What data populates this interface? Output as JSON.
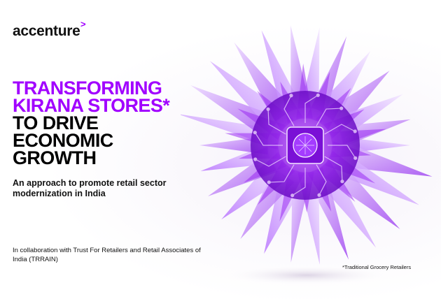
{
  "brand": {
    "name": "accenture",
    "mark": ">",
    "accent_color": "#a100ff"
  },
  "headline": {
    "line1": "TRANSFORMING",
    "line2": "KIRANA STORES*",
    "line3": "TO DRIVE",
    "line4": "ECONOMIC",
    "line5": "GROWTH"
  },
  "subtitle": "An approach to promote retail sector modernization in India",
  "collaboration": "In collaboration with Trust For Retailers and Retail Associates of India (TRRAIN)",
  "footnote": "*Traditional Grocery Retailers",
  "artwork": {
    "description_icon": "purple-crystal-chip-icon"
  }
}
